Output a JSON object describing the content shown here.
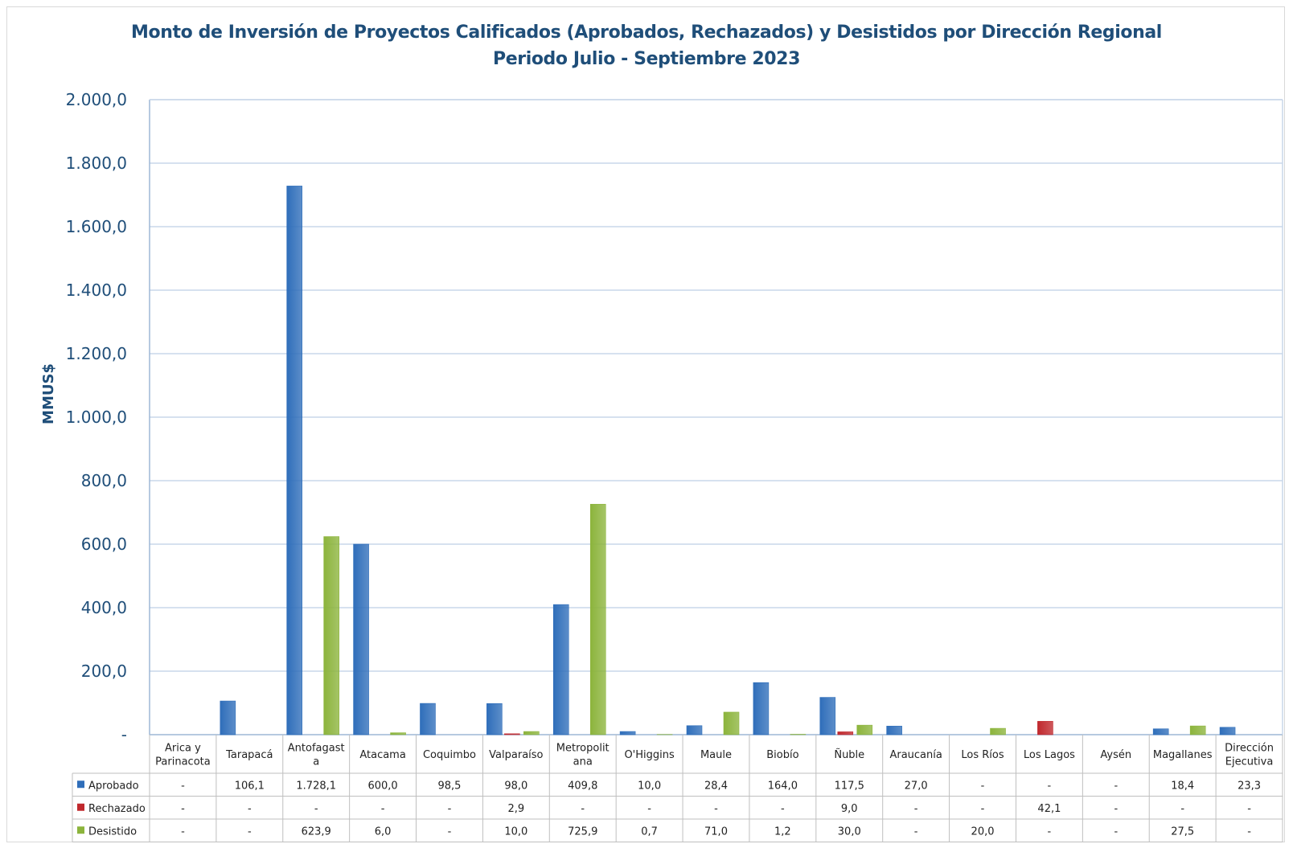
{
  "chart_data": {
    "type": "bar",
    "title": "Monto de Inversión de Proyectos Calificados (Aprobados, Rechazados) y Desistidos por Dirección Regional",
    "subtitle": "Periodo Julio - Septiembre 2023",
    "ylabel": "MMUS$",
    "xlabel": "",
    "ylim": [
      0,
      2000
    ],
    "yticks": [
      "-",
      "200,0",
      "400,0",
      "600,0",
      "800,0",
      "1.000,0",
      "1.200,0",
      "1.400,0",
      "1.600,0",
      "1.800,0",
      "2.000,0"
    ],
    "grid": true,
    "legend_placement": "data-table-left",
    "categories": [
      [
        "Arica y",
        "Parinacota"
      ],
      [
        "Tarapacá"
      ],
      [
        "Antofagast",
        "a"
      ],
      [
        "Atacama"
      ],
      [
        "Coquimbo"
      ],
      [
        "Valparaíso"
      ],
      [
        "Metropolit",
        "ana"
      ],
      [
        "O'Higgins"
      ],
      [
        "Maule"
      ],
      [
        "Biobío"
      ],
      [
        "Ñuble"
      ],
      [
        "Araucanía"
      ],
      [
        "Los Ríos"
      ],
      [
        "Los Lagos"
      ],
      [
        "Aysén"
      ],
      [
        "Magallanes"
      ],
      [
        "Dirección",
        "Ejecutiva"
      ]
    ],
    "series": [
      {
        "name": "Aprobado",
        "color": "#2f6eba",
        "values": [
          0,
          106.1,
          1728.1,
          600.0,
          98.5,
          98.0,
          409.8,
          10.0,
          28.4,
          164.0,
          117.5,
          27.0,
          0,
          0,
          0,
          18.4,
          23.3
        ],
        "labels": [
          "-",
          "106,1",
          "1.728,1",
          "600,0",
          "98,5",
          "98,0",
          "409,8",
          "10,0",
          "28,4",
          "164,0",
          "117,5",
          "27,0",
          "-",
          "-",
          "-",
          "18,4",
          "23,3"
        ]
      },
      {
        "name": "Rechazado",
        "color": "#c0282d",
        "values": [
          0,
          0,
          0,
          0,
          0,
          2.9,
          0,
          0,
          0,
          0,
          9.0,
          0,
          0,
          42.1,
          0,
          0,
          0
        ],
        "labels": [
          "-",
          "-",
          "-",
          "-",
          "-",
          "2,9",
          "-",
          "-",
          "-",
          "-",
          "9,0",
          "-",
          "-",
          "42,1",
          "-",
          "-",
          "-"
        ]
      },
      {
        "name": "Desistido",
        "color": "#8cb43c",
        "values": [
          0,
          0,
          623.9,
          6.0,
          0,
          10.0,
          725.9,
          0.7,
          71.0,
          1.2,
          30.0,
          0,
          20.0,
          0,
          0,
          27.5,
          0
        ],
        "labels": [
          "-",
          "-",
          "623,9",
          "6,0",
          "-",
          "10,0",
          "725,9",
          "0,7",
          "71,0",
          "1,2",
          "30,0",
          "-",
          "20,0",
          "-",
          "-",
          "27,5",
          "-"
        ]
      }
    ]
  }
}
